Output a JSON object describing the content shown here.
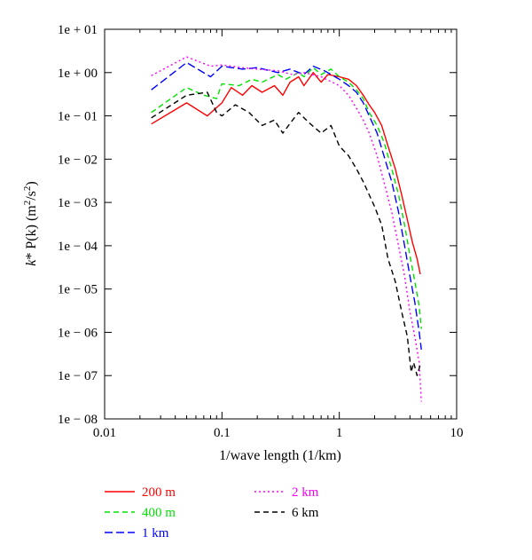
{
  "chart_data": {
    "type": "line",
    "xlabel": "1/wave length (1/km)",
    "ylabel_parts": {
      "k": "k",
      "mid": "* P(k) (m",
      "sup1": "2",
      "slash": "/s",
      "sup2": "2",
      "end": ")"
    },
    "x_scale": "log",
    "y_scale": "log",
    "xlim": [
      0.01,
      10
    ],
    "ylim": [
      1e-08,
      10
    ],
    "x_ticks": [
      {
        "value": 0.01,
        "label": "0.01"
      },
      {
        "value": 0.1,
        "label": "0.1"
      },
      {
        "value": 1,
        "label": "1"
      },
      {
        "value": 10,
        "label": "10"
      }
    ],
    "y_ticks": [
      {
        "value": 10,
        "label": "1e + 01"
      },
      {
        "value": 1,
        "label": "1e + 00"
      },
      {
        "value": 0.1,
        "label": "1e − 01"
      },
      {
        "value": 0.01,
        "label": "1e − 02"
      },
      {
        "value": 0.001,
        "label": "1e − 03"
      },
      {
        "value": 0.0001,
        "label": "1e − 04"
      },
      {
        "value": 1e-05,
        "label": "1e − 05"
      },
      {
        "value": 1e-06,
        "label": "1e − 06"
      },
      {
        "value": 1e-07,
        "label": "1e − 07"
      },
      {
        "value": 1e-08,
        "label": "1e − 08"
      }
    ],
    "grid": false,
    "legend_placement": "bottom",
    "series": [
      {
        "name": "200 m",
        "color": "#ff0000",
        "dash": "solid",
        "points": [
          [
            0.025,
            0.065
          ],
          [
            0.05,
            0.2
          ],
          [
            0.075,
            0.1
          ],
          [
            0.1,
            0.2
          ],
          [
            0.12,
            0.45
          ],
          [
            0.15,
            0.3
          ],
          [
            0.18,
            0.5
          ],
          [
            0.22,
            0.35
          ],
          [
            0.28,
            0.5
          ],
          [
            0.33,
            0.3
          ],
          [
            0.38,
            0.6
          ],
          [
            0.45,
            0.8
          ],
          [
            0.5,
            0.5
          ],
          [
            0.6,
            1.0
          ],
          [
            0.7,
            0.6
          ],
          [
            0.8,
            0.9
          ],
          [
            1.0,
            0.8
          ],
          [
            1.2,
            0.7
          ],
          [
            1.4,
            0.5
          ],
          [
            1.6,
            0.3
          ],
          [
            1.8,
            0.18
          ],
          [
            2.0,
            0.12
          ],
          [
            2.3,
            0.06
          ],
          [
            2.6,
            0.02
          ],
          [
            3.0,
            0.006
          ],
          [
            3.4,
            0.0015
          ],
          [
            3.8,
            0.0004
          ],
          [
            4.2,
            0.00012
          ],
          [
            4.6,
            5e-05
          ],
          [
            4.9,
            2.2e-05
          ]
        ]
      },
      {
        "name": "400 m",
        "color": "#00e000",
        "dash": "dashed",
        "points": [
          [
            0.025,
            0.12
          ],
          [
            0.05,
            0.45
          ],
          [
            0.07,
            0.3
          ],
          [
            0.09,
            0.25
          ],
          [
            0.1,
            0.55
          ],
          [
            0.14,
            0.5
          ],
          [
            0.18,
            0.7
          ],
          [
            0.22,
            0.6
          ],
          [
            0.3,
            0.9
          ],
          [
            0.35,
            0.7
          ],
          [
            0.45,
            1.0
          ],
          [
            0.5,
            0.8
          ],
          [
            0.6,
            1.3
          ],
          [
            0.7,
            0.9
          ],
          [
            0.85,
            1.2
          ],
          [
            1.0,
            0.8
          ],
          [
            1.2,
            0.6
          ],
          [
            1.4,
            0.4
          ],
          [
            1.6,
            0.25
          ],
          [
            1.8,
            0.12
          ],
          [
            2.1,
            0.06
          ],
          [
            2.4,
            0.025
          ],
          [
            2.8,
            0.006
          ],
          [
            3.2,
            0.0015
          ],
          [
            3.6,
            0.0003
          ],
          [
            4.0,
            6e-05
          ],
          [
            4.4,
            1.5e-05
          ],
          [
            4.8,
            4e-06
          ],
          [
            5.0,
            1.2e-06
          ]
        ]
      },
      {
        "name": "1 km",
        "color": "#0000ff",
        "dash": "longdash",
        "points": [
          [
            0.025,
            0.4
          ],
          [
            0.05,
            1.7
          ],
          [
            0.08,
            0.8
          ],
          [
            0.1,
            1.4
          ],
          [
            0.15,
            1.2
          ],
          [
            0.2,
            1.3
          ],
          [
            0.3,
            1.0
          ],
          [
            0.38,
            1.2
          ],
          [
            0.5,
            0.9
          ],
          [
            0.6,
            1.4
          ],
          [
            0.75,
            1.1
          ],
          [
            1.0,
            0.7
          ],
          [
            1.2,
            0.5
          ],
          [
            1.4,
            0.35
          ],
          [
            1.6,
            0.2
          ],
          [
            1.8,
            0.1
          ],
          [
            2.1,
            0.04
          ],
          [
            2.4,
            0.012
          ],
          [
            2.8,
            0.003
          ],
          [
            3.2,
            0.0006
          ],
          [
            3.6,
            0.0001
          ],
          [
            4.0,
            2e-05
          ],
          [
            4.4,
            5e-06
          ],
          [
            4.8,
            1e-06
          ],
          [
            5.0,
            4e-07
          ]
        ]
      },
      {
        "name": "2 km",
        "color": "#ff00ff",
        "dash": "dotted",
        "points": [
          [
            0.025,
            0.85
          ],
          [
            0.05,
            2.3
          ],
          [
            0.08,
            1.4
          ],
          [
            0.1,
            1.5
          ],
          [
            0.15,
            1.3
          ],
          [
            0.2,
            1.2
          ],
          [
            0.3,
            1.1
          ],
          [
            0.4,
            0.9
          ],
          [
            0.5,
            1.0
          ],
          [
            0.7,
            0.8
          ],
          [
            1.0,
            0.5
          ],
          [
            1.2,
            0.3
          ],
          [
            1.4,
            0.15
          ],
          [
            1.6,
            0.08
          ],
          [
            1.8,
            0.04
          ],
          [
            2.1,
            0.012
          ],
          [
            2.4,
            0.003
          ],
          [
            2.8,
            0.0006
          ],
          [
            3.2,
            0.0001
          ],
          [
            3.6,
            2e-05
          ],
          [
            4.0,
            3e-06
          ],
          [
            4.4,
            8e-07
          ],
          [
            4.8,
            2e-07
          ],
          [
            5.0,
            2.5e-08
          ]
        ]
      },
      {
        "name": "6 km",
        "color": "#000000",
        "dash": "dashed",
        "points": [
          [
            0.025,
            0.09
          ],
          [
            0.05,
            0.3
          ],
          [
            0.075,
            0.35
          ],
          [
            0.09,
            0.12
          ],
          [
            0.1,
            0.1
          ],
          [
            0.13,
            0.18
          ],
          [
            0.17,
            0.12
          ],
          [
            0.22,
            0.06
          ],
          [
            0.28,
            0.08
          ],
          [
            0.33,
            0.04
          ],
          [
            0.4,
            0.08
          ],
          [
            0.45,
            0.12
          ],
          [
            0.55,
            0.07
          ],
          [
            0.7,
            0.04
          ],
          [
            0.85,
            0.06
          ],
          [
            1.0,
            0.02
          ],
          [
            1.2,
            0.012
          ],
          [
            1.4,
            0.006
          ],
          [
            1.6,
            0.003
          ],
          [
            1.8,
            0.0015
          ],
          [
            2.0,
            0.0008
          ],
          [
            2.3,
            0.0003
          ],
          [
            2.6,
            5e-05
          ],
          [
            3.0,
            1.5e-05
          ],
          [
            3.4,
            3e-06
          ],
          [
            3.8,
            8e-07
          ],
          [
            4.1,
            1.2e-07
          ],
          [
            4.3,
            2e-07
          ],
          [
            4.6,
            1e-07
          ],
          [
            4.9,
            1.8e-07
          ]
        ]
      }
    ],
    "legend": [
      {
        "label": "200 m",
        "color": "#ff0000",
        "dash": "solid"
      },
      {
        "label": "400 m",
        "color": "#00e000",
        "dash": "dashed"
      },
      {
        "label": "1 km",
        "color": "#0000ff",
        "dash": "longdash"
      },
      {
        "label": "2 km",
        "color": "#ff00ff",
        "dash": "dotted"
      },
      {
        "label": "6 km",
        "color": "#000000",
        "dash": "dashed"
      }
    ]
  }
}
